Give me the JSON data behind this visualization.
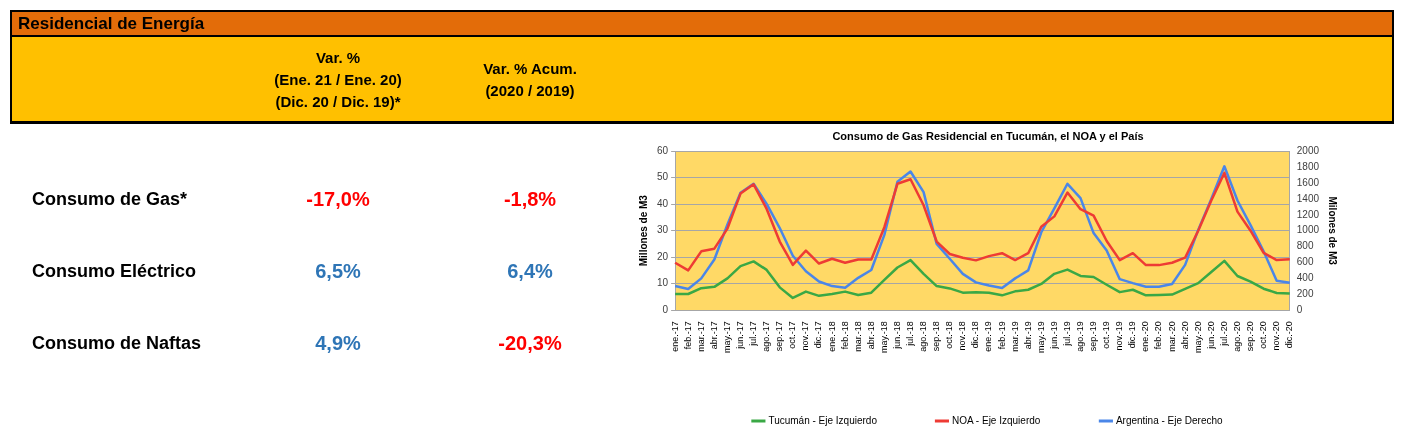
{
  "chart_data": [
    {
      "type": "other",
      "title": "Residencial de Energía",
      "categories": [
        "Consumo de Gas*",
        "Consumo Eléctrico",
        "Consumo de Naftas"
      ],
      "series": [
        {
          "name": "Var. %\n(Ene. 21 / Ene. 20)\n(Dic. 20 / Dic. 19)*",
          "values": [
            -17.0,
            6.5,
            4.9
          ],
          "value_labels": [
            "-17,0%",
            "6,5%",
            "4,9%"
          ],
          "colors": [
            "#ff0000",
            "#2e75b6",
            "#2e75b6"
          ]
        },
        {
          "name": "Var. % Acum.\n(2020 / 2019)",
          "values": [
            -1.8,
            6.4,
            -20.3
          ],
          "value_labels": [
            "-1,8%",
            "6,4%",
            "-20,3%"
          ],
          "colors": [
            "#ff0000",
            "#2e75b6",
            "#ff0000"
          ]
        }
      ]
    },
    {
      "type": "line",
      "title": "Consumo de Gas Residencial en Tucumán, el NOA y el País",
      "ylabel": "Millones de M3",
      "y2label": "Milones de M3",
      "categories": [
        "ene.-17",
        "feb.-17",
        "mar.-17",
        "abr.-17",
        "may.-17",
        "jun.-17",
        "jul.-17",
        "ago.-17",
        "sep.-17",
        "oct.-17",
        "nov.-17",
        "dic.-17",
        "ene.-18",
        "feb.-18",
        "mar.-18",
        "abr.-18",
        "may.-18",
        "jun.-18",
        "jul.-18",
        "ago.-18",
        "sep.-18",
        "oct.-18",
        "nov.-18",
        "dic.-18",
        "ene.-19",
        "feb.-19",
        "mar.-19",
        "abr.-19",
        "may.-19",
        "jun.-19",
        "jul.-19",
        "ago.-19",
        "sep.-19",
        "oct.-19",
        "nov.-19",
        "dic.-19",
        "ene.-20",
        "feb.-20",
        "mar.-20",
        "abr.-20",
        "may.-20",
        "jun.-20",
        "jul.-20",
        "ago.-20",
        "sep.-20",
        "oct.-20",
        "nov.-20",
        "dic.-20"
      ],
      "series": [
        {
          "name": "Tucumán - Eje Izquierdo",
          "color": "#3aa845",
          "values": [
            6.1,
            6.1,
            8.3,
            8.8,
            12.0,
            16.6,
            18.4,
            15.2,
            8.6,
            4.6,
            7.0,
            5.4,
            6.1,
            7.0,
            5.7,
            6.6,
            11.4,
            16.1,
            18.9,
            13.7,
            9.1,
            8.2,
            6.6,
            6.8,
            6.6,
            5.6,
            7.1,
            7.7,
            9.9,
            13.7,
            15.3,
            12.9,
            12.5,
            9.6,
            6.8,
            7.7,
            5.6,
            5.7,
            5.9,
            8.0,
            10.2,
            14.4,
            18.6,
            12.9,
            10.8,
            8.1,
            6.5,
            6.3
          ]
        },
        {
          "name": "NOA - Eje Izquierdo",
          "color": "#ee3b34",
          "values": [
            17.9,
            15.0,
            22.2,
            23.2,
            30.8,
            44.0,
            47.5,
            38.2,
            25.9,
            17.1,
            22.5,
            17.6,
            19.4,
            17.9,
            19.1,
            19.1,
            31.3,
            47.7,
            49.4,
            39.6,
            25.9,
            21.2,
            19.8,
            18.8,
            20.4,
            21.5,
            18.9,
            21.5,
            31.5,
            35.4,
            44.4,
            38.1,
            35.7,
            26.1,
            18.9,
            21.5,
            17.0,
            17.0,
            17.9,
            19.8,
            30.0,
            41.4,
            51.8,
            37.2,
            30.0,
            21.6,
            18.9,
            19.2
          ]
        },
        {
          "name": "Argentina - Eje Derecho",
          "color": "#4a86e8",
          "axis": "y2",
          "values": [
            303,
            267,
            400,
            637,
            1077,
            1477,
            1590,
            1337,
            1033,
            685,
            490,
            360,
            303,
            283,
            407,
            505,
            947,
            1615,
            1745,
            1485,
            833,
            647,
            457,
            350,
            310,
            280,
            400,
            500,
            980,
            1280,
            1590,
            1410,
            970,
            750,
            390,
            340,
            295,
            295,
            330,
            570,
            1010,
            1400,
            1810,
            1380,
            1070,
            740,
            370,
            345
          ]
        }
      ],
      "ylim": [
        0,
        60
      ],
      "yticks": [
        0,
        10,
        20,
        30,
        40,
        50,
        60
      ],
      "y2lim": [
        0,
        2000
      ],
      "y2ticks": [
        0,
        200,
        400,
        600,
        800,
        1000,
        1200,
        1400,
        1600,
        1800,
        2000
      ],
      "grid": "y",
      "legend": "bottom",
      "marker": "none",
      "line_style": "solid"
    }
  ]
}
